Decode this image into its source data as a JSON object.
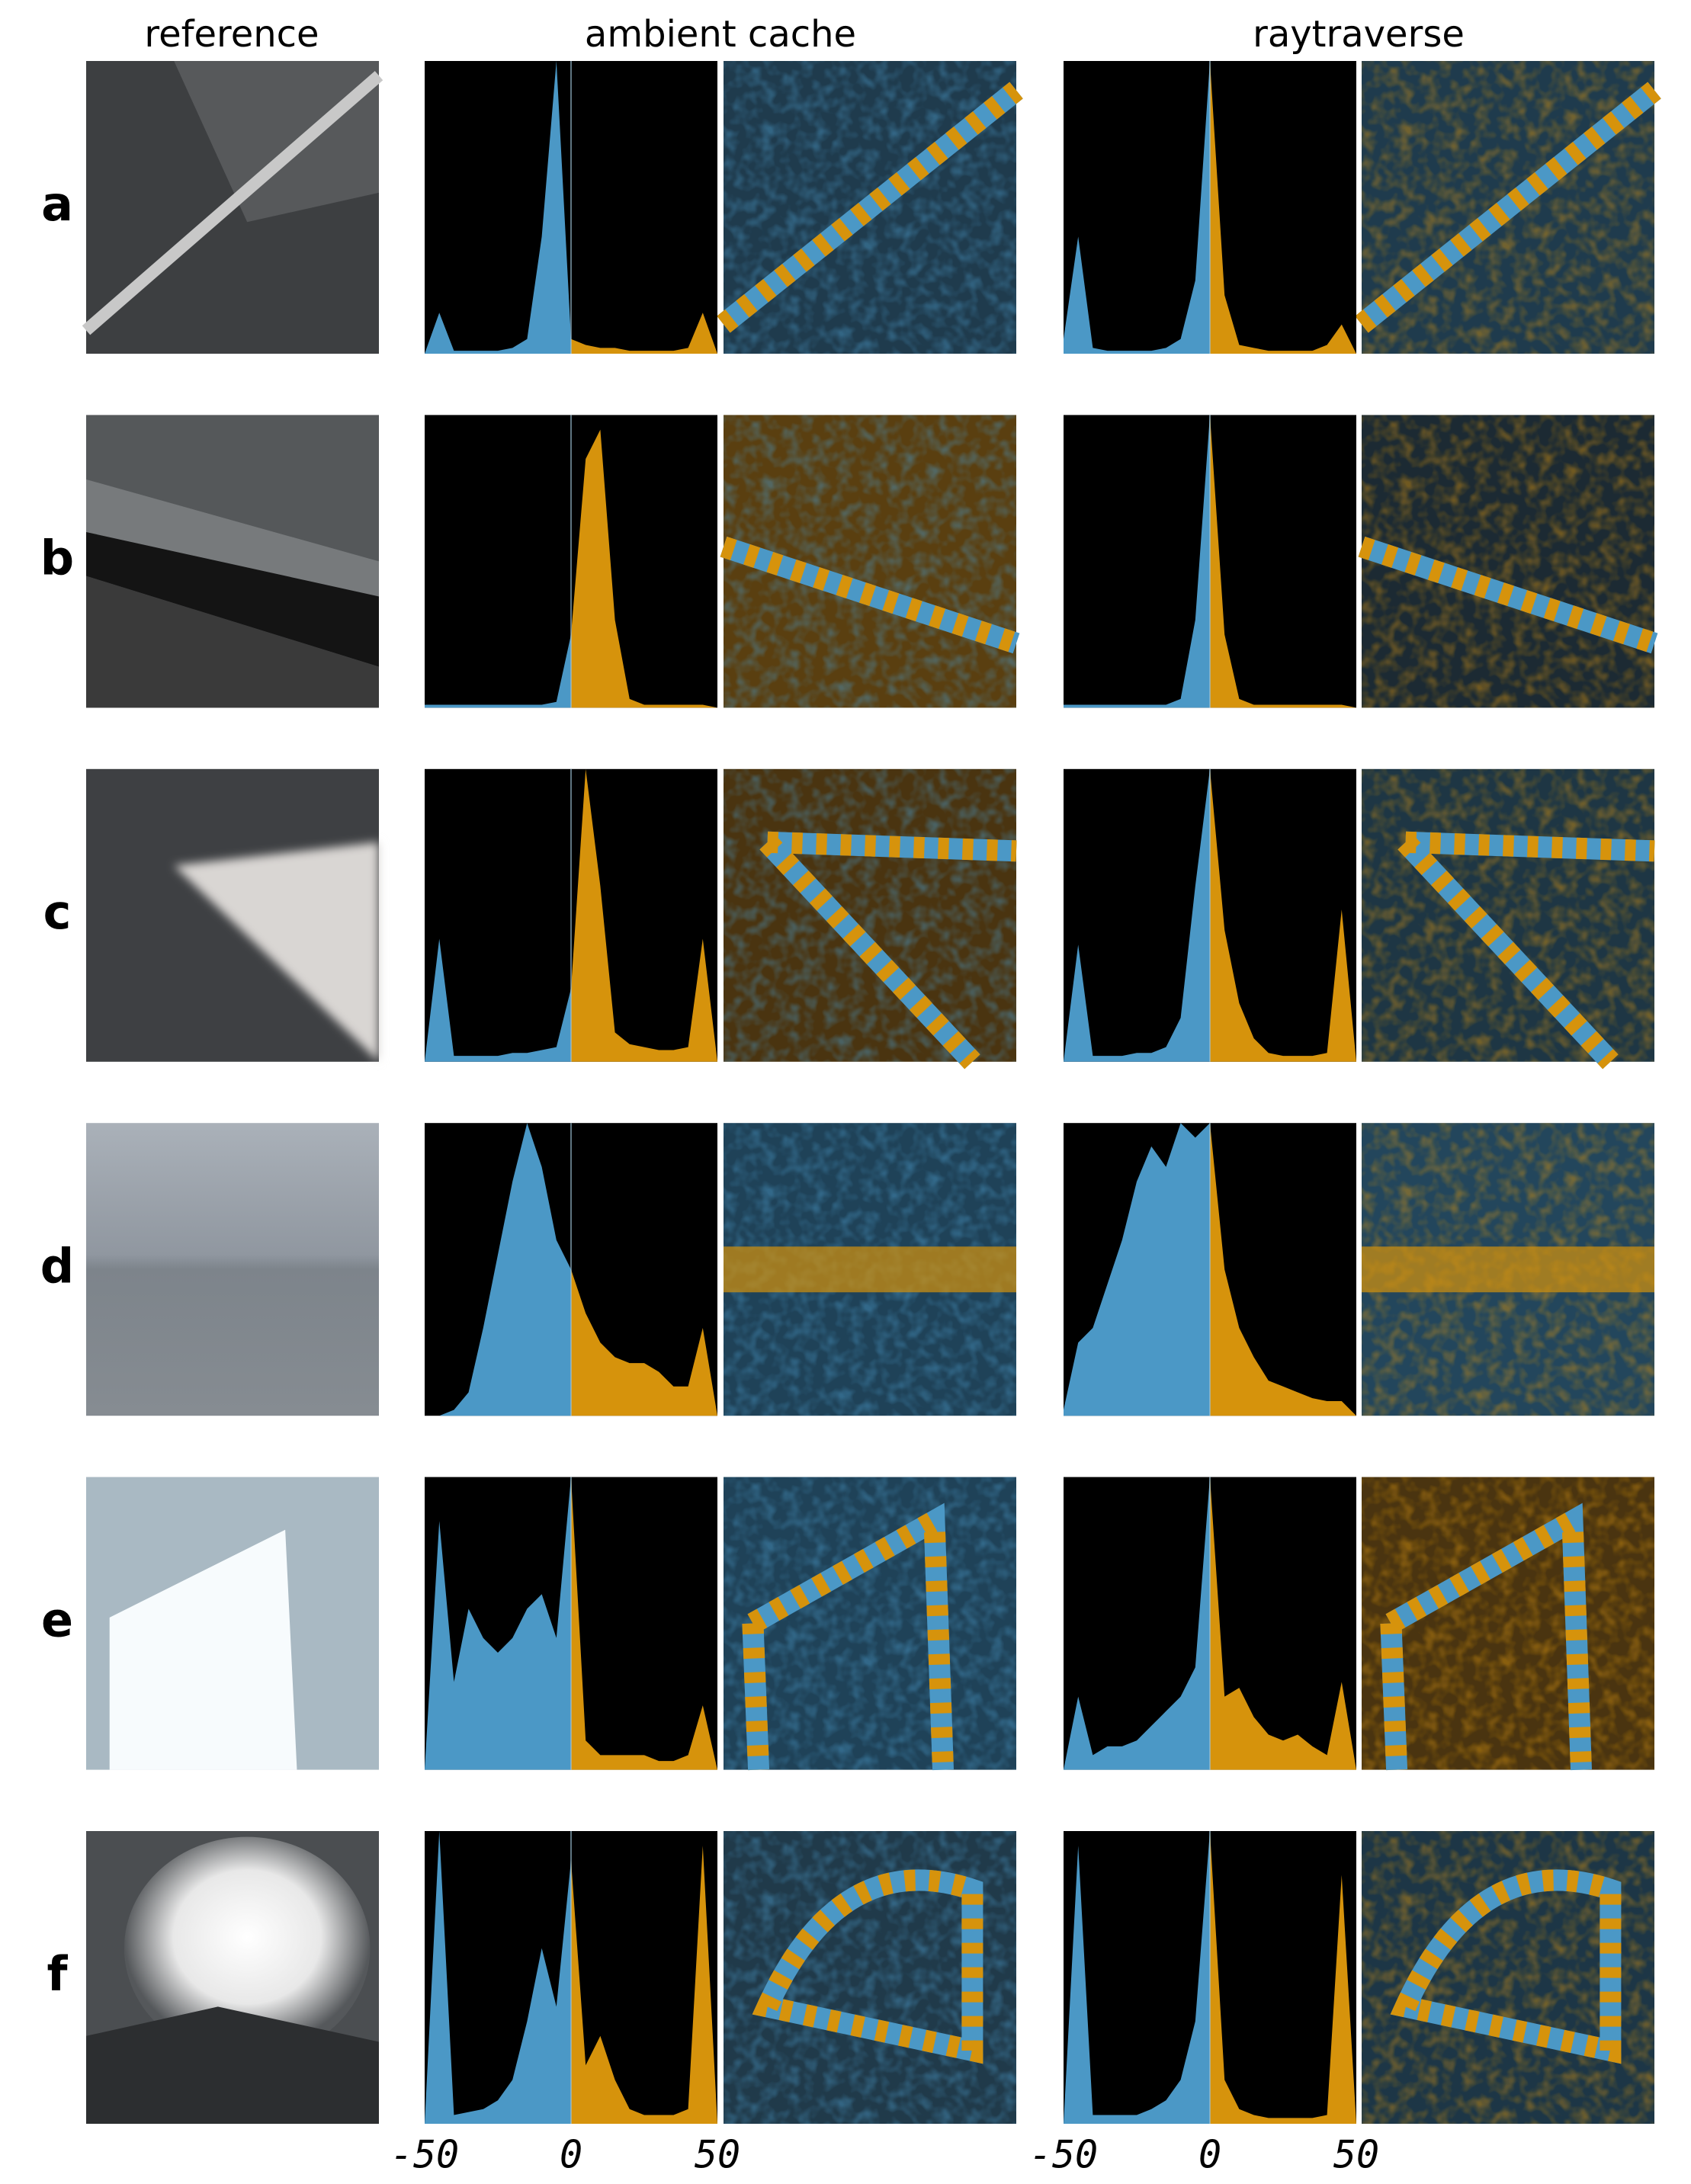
{
  "figure": {
    "columns": [
      "reference",
      "ambient cache",
      "raytraverse"
    ],
    "rows": [
      "a",
      "b",
      "c",
      "d",
      "e",
      "f"
    ]
  },
  "style": {
    "color_negative": "#4b98c6",
    "color_positive": "#d6930c",
    "background": "#000000"
  },
  "chart_data": [
    {
      "type": "area",
      "x": [
        -50,
        -45,
        -40,
        -35,
        -30,
        -25,
        -20,
        -15,
        -10,
        -5,
        0,
        5,
        10,
        15,
        20,
        25,
        30,
        35,
        40,
        45,
        50
      ],
      "values": [
        0,
        14,
        1,
        1,
        1,
        1,
        2,
        5,
        40,
        100,
        5,
        3,
        2,
        2,
        1,
        1,
        1,
        1,
        2,
        14,
        0
      ],
      "xlim": [
        -50,
        50
      ],
      "ylim": [
        0,
        100
      ]
    },
    {
      "type": "area",
      "x": [
        -50,
        -45,
        -40,
        -35,
        -30,
        -25,
        -20,
        -15,
        -10,
        -5,
        0,
        5,
        10,
        15,
        20,
        25,
        30,
        35,
        40,
        45,
        50
      ],
      "values": [
        5,
        40,
        2,
        1,
        1,
        1,
        1,
        2,
        5,
        25,
        100,
        20,
        3,
        2,
        1,
        1,
        1,
        1,
        3,
        10,
        0
      ],
      "xlim": [
        -50,
        50
      ],
      "ylim": [
        0,
        100
      ]
    },
    {
      "type": "area",
      "x": [
        -50,
        -45,
        -40,
        -35,
        -30,
        -25,
        -20,
        -15,
        -10,
        -5,
        0,
        5,
        10,
        15,
        20,
        25,
        30,
        35,
        40,
        45,
        50
      ],
      "values": [
        1,
        1,
        1,
        1,
        1,
        1,
        1,
        1,
        1,
        2,
        25,
        85,
        95,
        30,
        3,
        1,
        1,
        1,
        1,
        1,
        0
      ],
      "xlim": [
        -50,
        50
      ],
      "ylim": [
        0,
        100
      ]
    },
    {
      "type": "area",
      "x": [
        -50,
        -45,
        -40,
        -35,
        -30,
        -25,
        -20,
        -15,
        -10,
        -5,
        0,
        5,
        10,
        15,
        20,
        25,
        30,
        35,
        40,
        45,
        50
      ],
      "values": [
        1,
        1,
        1,
        1,
        1,
        1,
        1,
        1,
        3,
        30,
        100,
        25,
        3,
        1,
        1,
        1,
        1,
        1,
        1,
        1,
        0
      ],
      "xlim": [
        -50,
        50
      ],
      "ylim": [
        0,
        100
      ]
    },
    {
      "type": "area",
      "x": [
        -50,
        -45,
        -40,
        -35,
        -30,
        -25,
        -20,
        -15,
        -10,
        -5,
        0,
        5,
        10,
        15,
        20,
        25,
        30,
        35,
        40,
        45,
        50
      ],
      "values": [
        0,
        42,
        2,
        2,
        2,
        2,
        3,
        3,
        4,
        5,
        25,
        100,
        60,
        10,
        6,
        5,
        4,
        4,
        5,
        42,
        0
      ],
      "xlim": [
        -50,
        50
      ],
      "ylim": [
        0,
        100
      ]
    },
    {
      "type": "area",
      "x": [
        -50,
        -45,
        -40,
        -35,
        -30,
        -25,
        -20,
        -15,
        -10,
        -5,
        0,
        5,
        10,
        15,
        20,
        25,
        30,
        35,
        40,
        45,
        50
      ],
      "values": [
        0,
        40,
        2,
        2,
        2,
        3,
        3,
        5,
        15,
        60,
        100,
        45,
        20,
        8,
        3,
        2,
        2,
        2,
        3,
        52,
        0
      ],
      "xlim": [
        -50,
        50
      ],
      "ylim": [
        0,
        100
      ]
    },
    {
      "type": "area",
      "x": [
        -50,
        -45,
        -40,
        -35,
        -30,
        -25,
        -20,
        -15,
        -10,
        -5,
        0,
        5,
        10,
        15,
        20,
        25,
        30,
        35,
        40,
        45,
        50
      ],
      "values": [
        0,
        0,
        2,
        8,
        30,
        55,
        80,
        100,
        85,
        60,
        50,
        35,
        25,
        20,
        18,
        18,
        15,
        10,
        10,
        30,
        0
      ],
      "xlim": [
        -50,
        50
      ],
      "ylim": [
        0,
        100
      ]
    },
    {
      "type": "area",
      "x": [
        -50,
        -45,
        -40,
        -35,
        -30,
        -25,
        -20,
        -15,
        -10,
        -5,
        0,
        5,
        10,
        15,
        20,
        25,
        30,
        35,
        40,
        45,
        50
      ],
      "values": [
        2,
        25,
        30,
        45,
        60,
        80,
        92,
        85,
        100,
        95,
        100,
        50,
        30,
        20,
        12,
        10,
        8,
        6,
        5,
        5,
        0
      ],
      "xlim": [
        -50,
        50
      ],
      "ylim": [
        0,
        100
      ]
    },
    {
      "type": "area",
      "x": [
        -50,
        -45,
        -40,
        -35,
        -30,
        -25,
        -20,
        -15,
        -10,
        -5,
        0,
        5,
        10,
        15,
        20,
        25,
        30,
        35,
        40,
        45,
        50
      ],
      "values": [
        0,
        85,
        30,
        55,
        45,
        40,
        45,
        55,
        60,
        45,
        100,
        10,
        5,
        5,
        5,
        5,
        3,
        3,
        5,
        22,
        0
      ],
      "xlim": [
        -50,
        50
      ],
      "ylim": [
        0,
        100
      ]
    },
    {
      "type": "area",
      "x": [
        -50,
        -45,
        -40,
        -35,
        -30,
        -25,
        -20,
        -15,
        -10,
        -5,
        0,
        5,
        10,
        15,
        20,
        25,
        30,
        35,
        40,
        45,
        50
      ],
      "values": [
        0,
        25,
        5,
        8,
        8,
        10,
        15,
        20,
        25,
        35,
        100,
        25,
        28,
        18,
        12,
        10,
        12,
        8,
        5,
        30,
        0
      ],
      "xlim": [
        -50,
        50
      ],
      "ylim": [
        0,
        100
      ]
    },
    {
      "type": "area",
      "x": [
        -50,
        -45,
        -40,
        -35,
        -30,
        -25,
        -20,
        -15,
        -10,
        -5,
        0,
        5,
        10,
        15,
        20,
        25,
        30,
        35,
        40,
        45,
        50
      ],
      "values": [
        0,
        100,
        3,
        4,
        5,
        8,
        15,
        35,
        60,
        40,
        90,
        20,
        30,
        15,
        5,
        3,
        3,
        3,
        5,
        95,
        0
      ],
      "xlim": [
        -50,
        50
      ],
      "ylim": [
        0,
        100
      ],
      "xticks": [
        -50,
        0,
        50
      ]
    },
    {
      "type": "area",
      "x": [
        -50,
        -45,
        -40,
        -35,
        -30,
        -25,
        -20,
        -15,
        -10,
        -5,
        0,
        5,
        10,
        15,
        20,
        25,
        30,
        35,
        40,
        45,
        50
      ],
      "values": [
        0,
        95,
        3,
        3,
        3,
        3,
        5,
        8,
        15,
        35,
        100,
        15,
        5,
        3,
        2,
        2,
        2,
        2,
        3,
        85,
        0
      ],
      "xlim": [
        -50,
        50
      ],
      "ylim": [
        0,
        100
      ],
      "xticks": [
        -50,
        0,
        50
      ]
    }
  ]
}
